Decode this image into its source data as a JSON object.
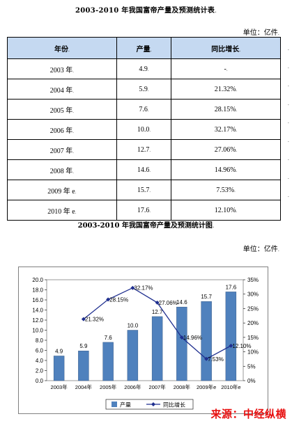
{
  "table_title": "2003-2010 年我国富帝产量及预测统计表",
  "table_unit": "单位：亿件",
  "headers": [
    "年份",
    "产量",
    "同比增长"
  ],
  "rows": [
    {
      "year": "2003 年",
      "output": "4.9",
      "growth": "-"
    },
    {
      "year": "2004 年",
      "output": "5.9",
      "growth": "21.32%"
    },
    {
      "year": "2005 年",
      "output": "7.6",
      "growth": "28.15%"
    },
    {
      "year": "2006 年",
      "output": "10.0",
      "growth": "32.17%"
    },
    {
      "year": "2007 年",
      "output": "12.7",
      "growth": "27.06%"
    },
    {
      "year": "2008 年",
      "output": "14.6",
      "growth": "14.96%"
    },
    {
      "year": "2009 年 e",
      "output": "15.7",
      "growth": "7.53%"
    },
    {
      "year": "2010 年 e",
      "output": "17.6",
      "growth": "12.10%"
    }
  ],
  "chart_title": "2003-2010 年我国富帝产量及预测统计图",
  "chart_unit": "单位：亿件",
  "source": "来源：中经纵横",
  "chart_data": {
    "type": "bar",
    "categories": [
      "2003年",
      "2004年",
      "2005年",
      "2006年",
      "2007年",
      "2008年",
      "2009年e",
      "2010年e"
    ],
    "series": [
      {
        "name": "产量",
        "type": "bar",
        "axis": "left",
        "values": [
          4.9,
          5.9,
          7.6,
          10.0,
          12.7,
          14.6,
          15.7,
          17.6
        ],
        "labels": [
          "4.9",
          "5.9",
          "7.6",
          "10.0",
          "12.7",
          "14.6",
          "15.7",
          "17.6"
        ],
        "color": "#4f81bd"
      },
      {
        "name": "同比增长",
        "type": "line",
        "axis": "right",
        "values": [
          null,
          21.32,
          28.15,
          32.17,
          27.06,
          14.96,
          7.53,
          12.1
        ],
        "labels": [
          "",
          "21.32%",
          "28.15%",
          "32.17%",
          "27.06%",
          "14.96%",
          "7.53%",
          "12.10%"
        ],
        "color": "#1f2f8f"
      }
    ],
    "left_axis": {
      "min": 0,
      "max": 20,
      "step": 2,
      "ticks": [
        "0.0",
        "2.0",
        "4.0",
        "6.0",
        "8.0",
        "10.0",
        "12.0",
        "14.0",
        "16.0",
        "18.0",
        "20.0"
      ]
    },
    "right_axis": {
      "min": 0,
      "max": 35,
      "step": 5,
      "ticks": [
        "0%",
        "5%",
        "10%",
        "15%",
        "20%",
        "25%",
        "30%",
        "35%"
      ]
    },
    "legend_position": "bottom"
  }
}
